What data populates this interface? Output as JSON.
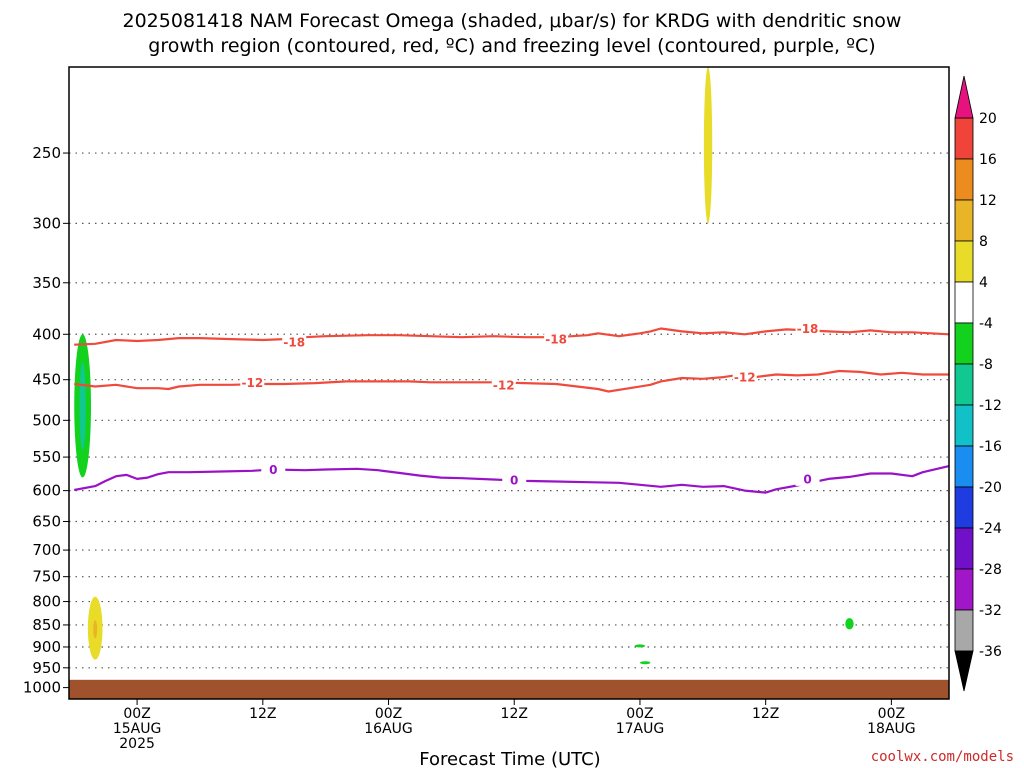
{
  "chart_data": {
    "type": "contour",
    "title_line1": "2025081418 NAM Forecast Omega (shaded, μbar/s) for KRDG with dendritic snow",
    "title_line2": "growth region (contoured, red, ºC) and freezing level (contoured, purple, ºC)",
    "xlabel": "Forecast Time (UTC)",
    "credit": "coolwx.com/models",
    "y_axis": {
      "scale": "log-pressure",
      "reversed": true,
      "ylim": [
        1030,
        200
      ],
      "ticks": [
        250,
        300,
        350,
        400,
        450,
        500,
        550,
        600,
        650,
        700,
        750,
        800,
        850,
        900,
        950,
        1000
      ]
    },
    "x_axis": {
      "xlim_hours": [
        -6.5,
        77.5
      ],
      "ticks": [
        {
          "h": 0,
          "lines": [
            "00Z",
            "15AUG",
            "2025"
          ]
        },
        {
          "h": 12,
          "lines": [
            "12Z"
          ]
        },
        {
          "h": 24,
          "lines": [
            "00Z",
            "16AUG"
          ]
        },
        {
          "h": 36,
          "lines": [
            "12Z"
          ]
        },
        {
          "h": 48,
          "lines": [
            "00Z",
            "17AUG"
          ]
        },
        {
          "h": 60,
          "lines": [
            "12Z"
          ]
        },
        {
          "h": 72,
          "lines": [
            "00Z",
            "18AUG"
          ]
        }
      ]
    },
    "grid": "dotted-horizontal",
    "colorbar": {
      "levels": [
        "-36",
        "-32",
        "-28",
        "-24",
        "-20",
        "-16",
        "-12",
        "-8",
        "-4",
        "4",
        "8",
        "12",
        "16",
        "20"
      ],
      "colors": [
        "#a8a8a8",
        "#a016c8",
        "#7010c8",
        "#1e3ce0",
        "#1a8ef0",
        "#12c0c8",
        "#10c890",
        "#12d21e",
        "#ffffff",
        "#e8dc28",
        "#e8b428",
        "#ec8c1e",
        "#f0443a"
      ],
      "low_color": "#000000",
      "high_color": "#e6127e"
    },
    "contours": [
      {
        "label": "-18",
        "color": "#f04a3c",
        "points": [
          [
            -6,
            411
          ],
          [
            -4,
            410
          ],
          [
            -2,
            406
          ],
          [
            0,
            407
          ],
          [
            2,
            406
          ],
          [
            4,
            404
          ],
          [
            6,
            404
          ],
          [
            9,
            405
          ],
          [
            12,
            406
          ],
          [
            14,
            405
          ],
          [
            16,
            403
          ],
          [
            18,
            402
          ],
          [
            22,
            401
          ],
          [
            25,
            401
          ],
          [
            28,
            402
          ],
          [
            31,
            403
          ],
          [
            34,
            402
          ],
          [
            37,
            403
          ],
          [
            40,
            403
          ],
          [
            43,
            401
          ],
          [
            44,
            399
          ],
          [
            46,
            402
          ],
          [
            48,
            399
          ],
          [
            49,
            397
          ],
          [
            50,
            394
          ],
          [
            52,
            397
          ],
          [
            54,
            399
          ],
          [
            56,
            398
          ],
          [
            58,
            400
          ],
          [
            60,
            397
          ],
          [
            62,
            395
          ],
          [
            64,
            396
          ],
          [
            66,
            397
          ],
          [
            68,
            398
          ],
          [
            70,
            396
          ],
          [
            72,
            398
          ],
          [
            74,
            398
          ],
          [
            77.5,
            400
          ]
        ],
        "label_positions": [
          [
            15,
            408
          ],
          [
            40,
            405
          ],
          [
            64,
            394
          ]
        ]
      },
      {
        "label": "-12",
        "color": "#f04a3c",
        "points": [
          [
            -6,
            455
          ],
          [
            -4,
            458
          ],
          [
            -2,
            456
          ],
          [
            0,
            460
          ],
          [
            2,
            460
          ],
          [
            3,
            461
          ],
          [
            4,
            458
          ],
          [
            6,
            456
          ],
          [
            9,
            456
          ],
          [
            12,
            455
          ],
          [
            14,
            455
          ],
          [
            17,
            454
          ],
          [
            20,
            452
          ],
          [
            23,
            452
          ],
          [
            26,
            452
          ],
          [
            28,
            453
          ],
          [
            31,
            453
          ],
          [
            34,
            453
          ],
          [
            37,
            454
          ],
          [
            40,
            455
          ],
          [
            42,
            458
          ],
          [
            44,
            461
          ],
          [
            45,
            464
          ],
          [
            47,
            460
          ],
          [
            49,
            456
          ],
          [
            50,
            452
          ],
          [
            52,
            448
          ],
          [
            54,
            449
          ],
          [
            56,
            447
          ],
          [
            57,
            445
          ],
          [
            59,
            447
          ],
          [
            61,
            444
          ],
          [
            63,
            445
          ],
          [
            65,
            444
          ],
          [
            67,
            440
          ],
          [
            69,
            441
          ],
          [
            71,
            444
          ],
          [
            73,
            442
          ],
          [
            75,
            444
          ],
          [
            77.5,
            444
          ]
        ],
        "label_positions": [
          [
            11,
            453
          ],
          [
            35,
            456
          ],
          [
            58,
            447
          ]
        ]
      },
      {
        "label": "0",
        "color": "#9a12c8",
        "points": [
          [
            -6,
            599
          ],
          [
            -4,
            593
          ],
          [
            -3,
            585
          ],
          [
            -2,
            578
          ],
          [
            -1,
            576
          ],
          [
            0,
            582
          ],
          [
            1,
            580
          ],
          [
            2,
            575
          ],
          [
            3,
            572
          ],
          [
            5,
            572
          ],
          [
            8,
            571
          ],
          [
            11,
            570
          ],
          [
            13,
            568
          ],
          [
            16,
            569
          ],
          [
            18,
            568
          ],
          [
            21,
            567
          ],
          [
            23,
            569
          ],
          [
            25,
            573
          ],
          [
            27,
            577
          ],
          [
            29,
            580
          ],
          [
            31,
            581
          ],
          [
            34,
            583
          ],
          [
            37,
            585
          ],
          [
            40,
            586
          ],
          [
            43,
            587
          ],
          [
            46,
            588
          ],
          [
            48,
            591
          ],
          [
            50,
            594
          ],
          [
            52,
            591
          ],
          [
            54,
            594
          ],
          [
            56,
            593
          ],
          [
            58,
            600
          ],
          [
            60,
            603
          ],
          [
            61,
            598
          ],
          [
            63,
            592
          ],
          [
            66,
            582
          ],
          [
            68,
            579
          ],
          [
            70,
            574
          ],
          [
            72,
            574
          ],
          [
            74,
            578
          ],
          [
            75,
            572
          ],
          [
            77.5,
            563
          ]
        ],
        "label_positions": [
          [
            13,
            568
          ],
          [
            36,
            584
          ],
          [
            64,
            582
          ]
        ]
      }
    ],
    "shaded_regions": [
      {
        "value": "-8",
        "color": "#12d21e",
        "h_center": -5.2,
        "p_top": 400,
        "p_bottom": 580,
        "half_width_h": 0.8
      },
      {
        "value": "-12",
        "color": "#10c890",
        "h_center": -5.2,
        "p_top": 430,
        "p_bottom": 540,
        "half_width_h": 0.3
      },
      {
        "value": "4",
        "color": "#e8dc28",
        "h_center": -4.0,
        "p_top": 790,
        "p_bottom": 930,
        "half_width_h": 0.7
      },
      {
        "value": "8",
        "color": "#e8b428",
        "h_center": -4.0,
        "p_top": 840,
        "p_bottom": 880,
        "half_width_h": 0.15
      },
      {
        "value": "4",
        "color": "#e8dc28",
        "h_center": 54.5,
        "p_top": 200,
        "p_bottom": 300,
        "half_width_h": 0.4
      },
      {
        "value": "-8",
        "color": "#12d21e",
        "h_center": 48.0,
        "p_top": 895,
        "p_bottom": 900,
        "half_width_h": 0.5
      },
      {
        "value": "-8",
        "color": "#12d21e",
        "h_center": 48.5,
        "p_top": 935,
        "p_bottom": 940,
        "half_width_h": 0.5
      },
      {
        "value": "-8",
        "color": "#12d21e",
        "h_center": 68.0,
        "p_top": 835,
        "p_bottom": 860,
        "half_width_h": 0.4
      }
    ],
    "terrain": {
      "color": "#a0522d",
      "p_top": 980
    }
  }
}
